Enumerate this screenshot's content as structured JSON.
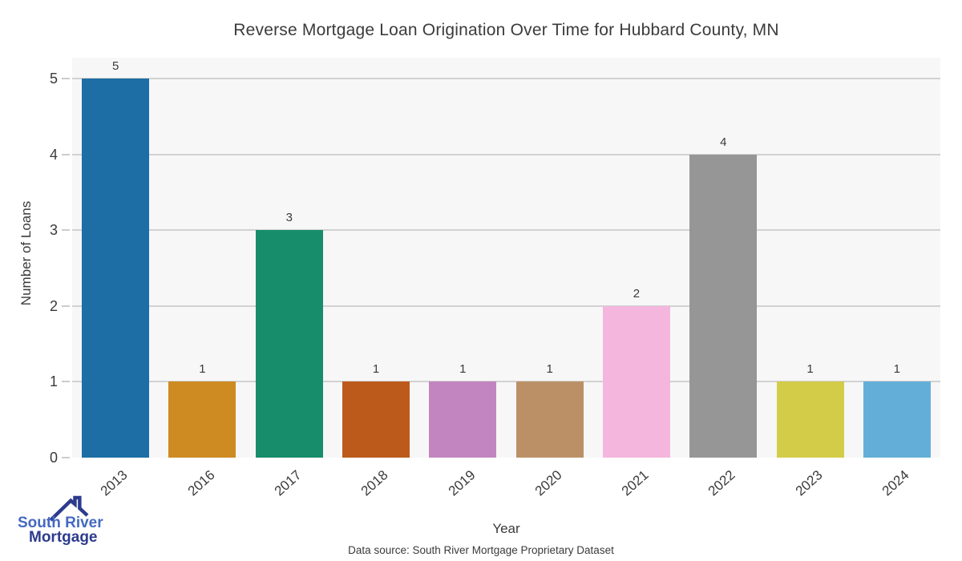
{
  "chart_data": {
    "type": "bar",
    "title": "Reverse Mortgage Loan Origination Over Time for Hubbard County, MN",
    "xlabel": "Year",
    "ylabel": "Number of Loans",
    "categories": [
      "2013",
      "2016",
      "2017",
      "2018",
      "2019",
      "2020",
      "2021",
      "2022",
      "2023",
      "2024"
    ],
    "values": [
      5,
      1,
      3,
      1,
      1,
      1,
      2,
      4,
      1,
      1
    ],
    "bar_colors": [
      "#1c6ea4",
      "#cd8b22",
      "#178d6b",
      "#bc5a1c",
      "#c285bf",
      "#bb9067",
      "#f4b6dc",
      "#969696",
      "#d3cc49",
      "#63aed8"
    ],
    "yticks": [
      0,
      1,
      2,
      3,
      4,
      5
    ],
    "ylim": [
      0,
      5.27
    ],
    "grid": "horizontal",
    "gridline_color": "#d2d2d2",
    "plot_bg": "#f7f7f7",
    "value_labels_shown": true,
    "legend": "none"
  },
  "footer": {
    "text": "Data source: South River Mortgage Proprietary Dataset"
  },
  "logo": {
    "line1": "South River",
    "line2": "Mortgage",
    "accent_color": "#4569c0",
    "primary_color": "#2d3b8e"
  }
}
